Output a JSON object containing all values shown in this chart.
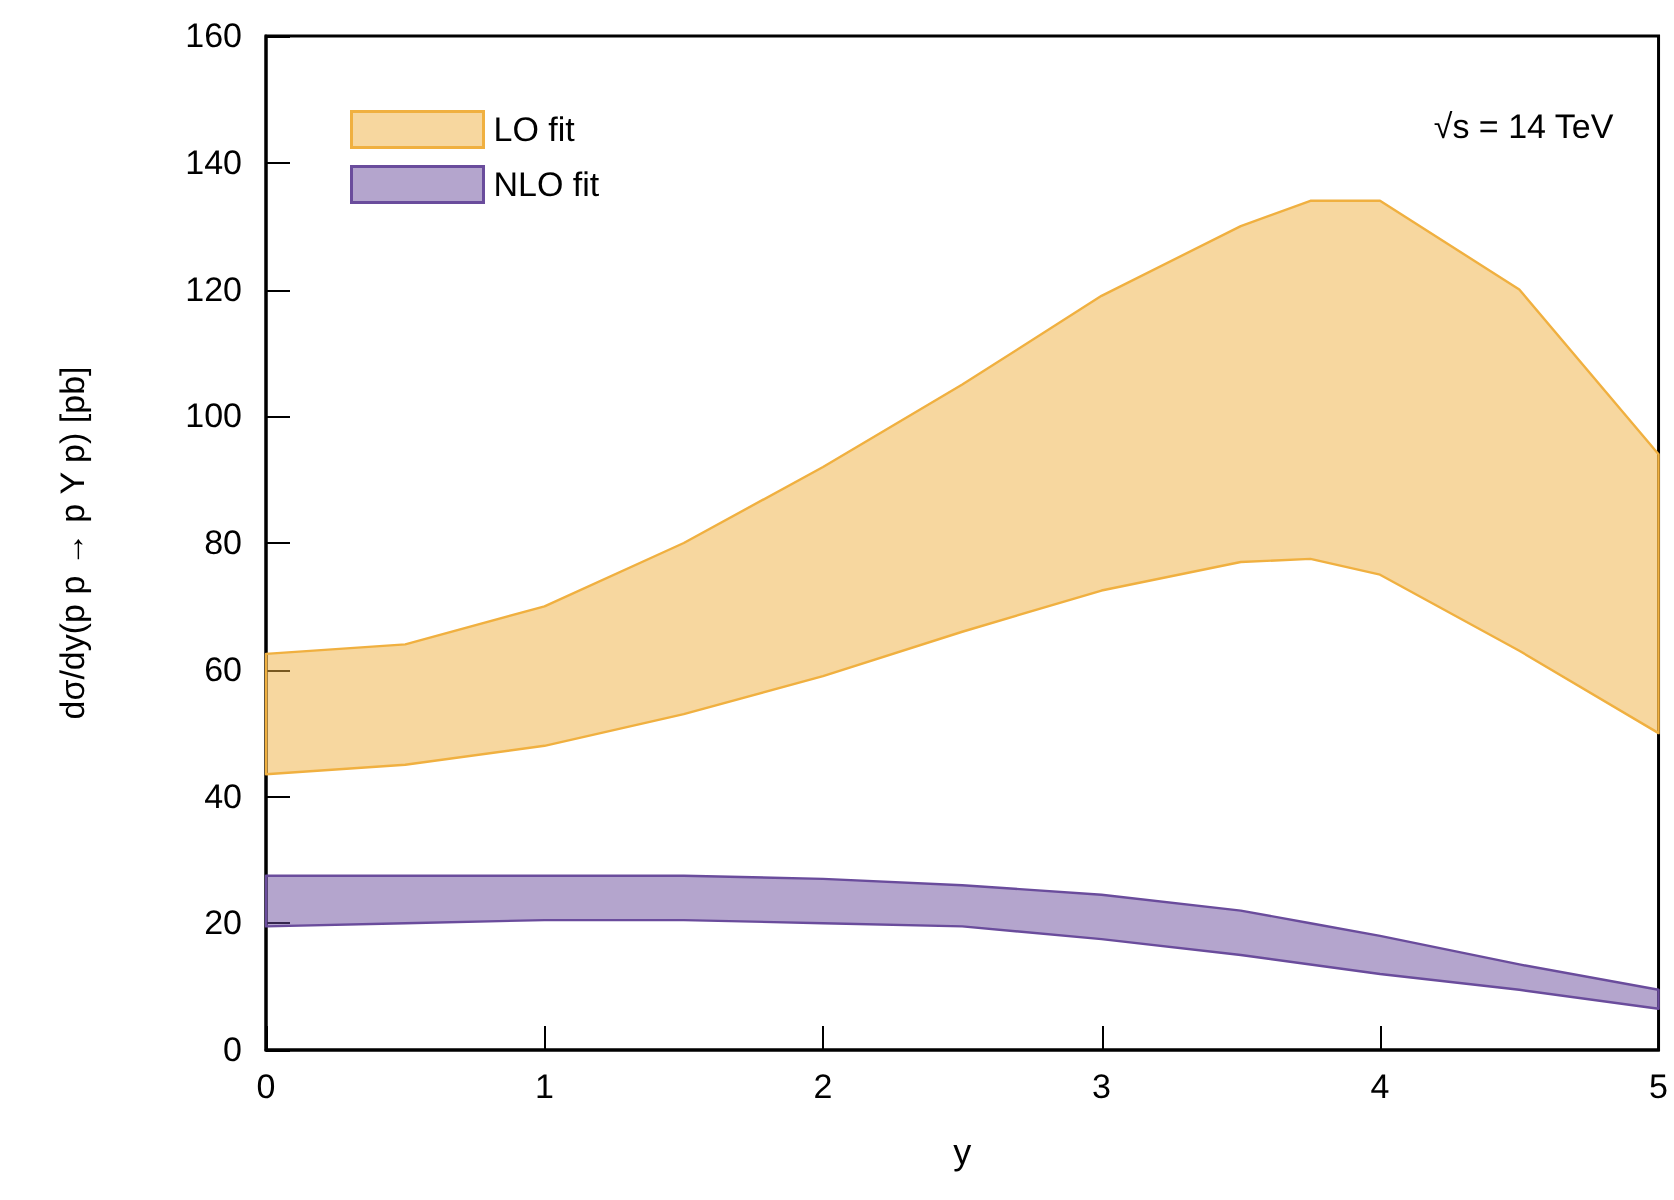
{
  "chart_data": {
    "type": "area",
    "xlabel": "y",
    "ylabel": "dσ/dy(p p → p Υ p) [pb]",
    "annotations": [
      "√s = 14 TeV"
    ],
    "xlim": [
      0,
      5
    ],
    "xticks": [
      0,
      1,
      2,
      3,
      4,
      5
    ],
    "ylim": [
      0,
      160
    ],
    "yticks": [
      0,
      20,
      40,
      60,
      80,
      100,
      120,
      140,
      160
    ],
    "grid": false,
    "legend": "top left",
    "x": [
      0,
      0.5,
      1,
      1.5,
      2,
      2.5,
      3,
      3.5,
      3.75,
      4,
      4.5,
      5
    ],
    "series": [
      {
        "name": "LO fit",
        "color": "#f0b040",
        "values": [
          null,
          null,
          null,
          null,
          null,
          null,
          null,
          null,
          null,
          null,
          null,
          null
        ],
        "lower": [
          43.5,
          45,
          48,
          53,
          59,
          66,
          72.5,
          77,
          77.5,
          75,
          63,
          50
        ],
        "upper": [
          62.5,
          64,
          70,
          80,
          92,
          105,
          119,
          130,
          134,
          134,
          120,
          94
        ]
      },
      {
        "name": "NLO fit",
        "color": "#6a4c9c",
        "values": [
          null,
          null,
          null,
          null,
          null,
          null,
          null,
          null,
          null,
          null,
          null,
          null
        ],
        "lower": [
          19.5,
          20,
          20.5,
          20.5,
          20,
          19.5,
          17.5,
          15,
          13.5,
          12,
          9.5,
          6.5
        ],
        "upper": [
          27.5,
          27.5,
          27.5,
          27.5,
          27,
          26,
          24.5,
          22,
          20,
          18,
          13.5,
          9.5
        ]
      }
    ]
  }
}
